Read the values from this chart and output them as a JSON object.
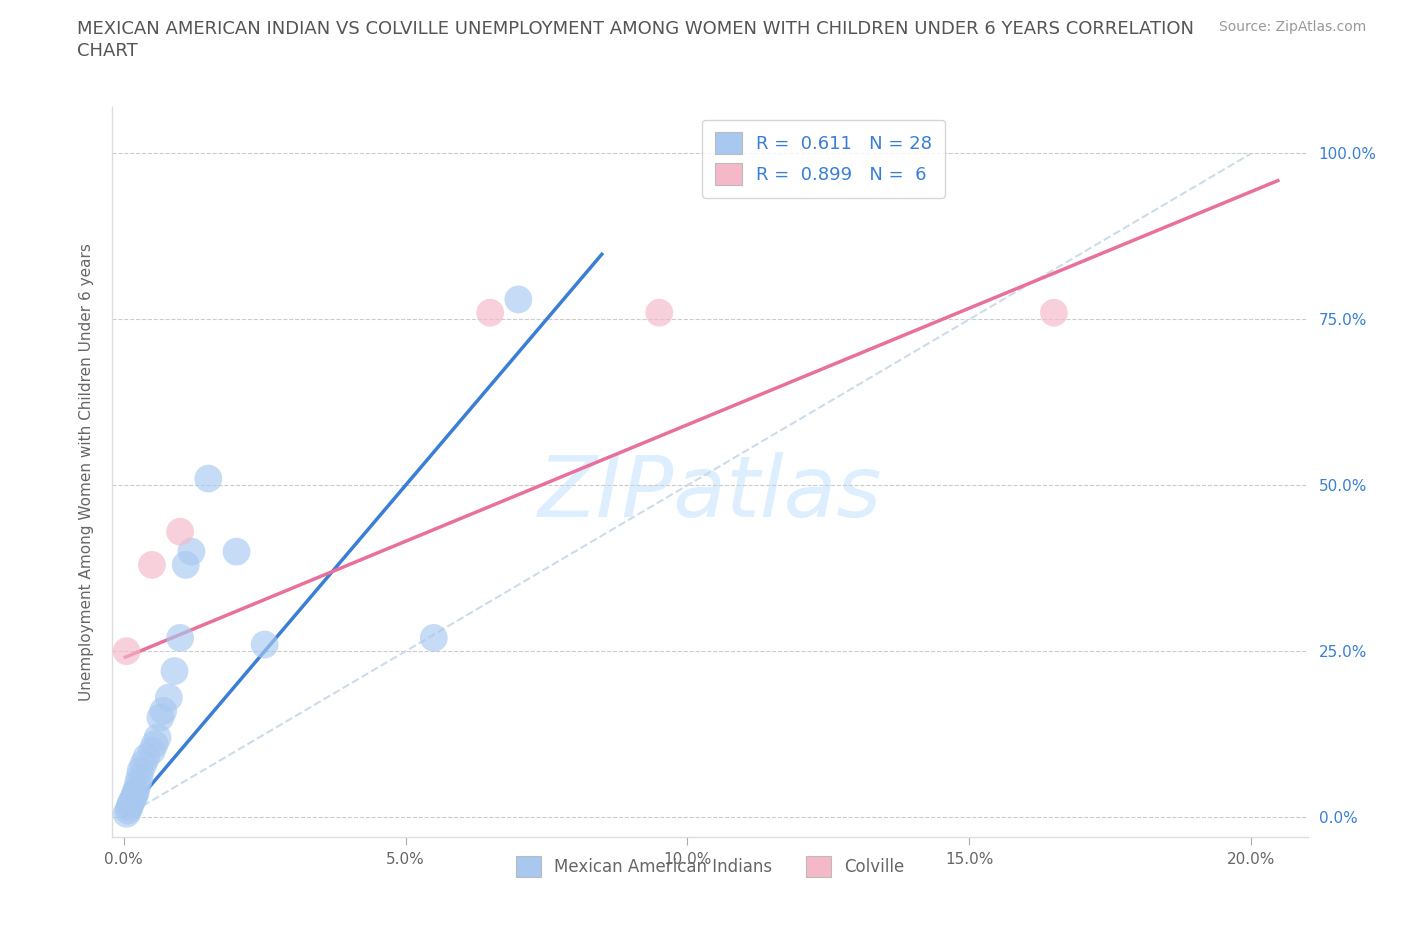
{
  "title_line1": "MEXICAN AMERICAN INDIAN VS COLVILLE UNEMPLOYMENT AMONG WOMEN WITH CHILDREN UNDER 6 YEARS CORRELATION",
  "title_line2": "CHART",
  "source": "Source: ZipAtlas.com",
  "ylabel": "Unemployment Among Women with Children Under 6 years",
  "x_tick_vals": [
    0.0,
    5.0,
    10.0,
    15.0,
    20.0
  ],
  "x_tick_labels": [
    "0.0%",
    "5.0%",
    "10.0%",
    "15.0%",
    "20.0%"
  ],
  "y_tick_vals": [
    0.0,
    25.0,
    50.0,
    75.0,
    100.0
  ],
  "y_tick_labels": [
    "0.0%",
    "25.0%",
    "50.0%",
    "75.0%",
    "100.0%"
  ],
  "blue_R": "0.611",
  "blue_N": "28",
  "pink_R": "0.899",
  "pink_N": "6",
  "blue_scatter_color": "#a8c8f0",
  "pink_scatter_color": "#f5b8c8",
  "blue_line_color": "#3a7fd5",
  "pink_line_color": "#e8709a",
  "ref_line_color": "#c8d8e8",
  "watermark_text": "ZIPatlas",
  "watermark_color": "#ddeeff",
  "blue_x": [
    0.05,
    0.08,
    0.1,
    0.12,
    0.15,
    0.18,
    0.2,
    0.22,
    0.25,
    0.28,
    0.3,
    0.35,
    0.4,
    0.5,
    0.55,
    0.6,
    0.65,
    0.7,
    0.8,
    0.9,
    1.0,
    1.1,
    1.2,
    1.5,
    2.0,
    2.5,
    5.5,
    7.0
  ],
  "blue_y": [
    0.5,
    1.0,
    1.5,
    2.0,
    2.5,
    3.0,
    3.5,
    4.0,
    5.0,
    6.0,
    7.0,
    8.0,
    9.0,
    10.0,
    11.0,
    12.0,
    15.0,
    16.0,
    18.0,
    22.0,
    27.0,
    38.0,
    40.0,
    51.0,
    40.0,
    26.0,
    27.0,
    78.0
  ],
  "pink_x": [
    0.05,
    0.5,
    1.0,
    6.5,
    9.5,
    16.5
  ],
  "pink_y": [
    25.0,
    38.0,
    43.0,
    76.0,
    76.0,
    76.0
  ],
  "blue_trend_x0": 0.0,
  "blue_trend_x1": 8.5,
  "blue_trend_y0": 0.0,
  "blue_trend_y1": 85.0,
  "pink_trend_x0": 0.0,
  "pink_trend_x1": 20.5,
  "pink_trend_y0": 24.0,
  "pink_trend_y1": 96.0,
  "ref_x0": 0.0,
  "ref_x1": 20.0,
  "ref_y0": 0.0,
  "ref_y1": 100.0,
  "legend_label_blue": "Mexican American Indians",
  "legend_label_pink": "Colville",
  "xlim_min": -0.2,
  "xlim_max": 21.0,
  "ylim_min": -3.0,
  "ylim_max": 107.0
}
